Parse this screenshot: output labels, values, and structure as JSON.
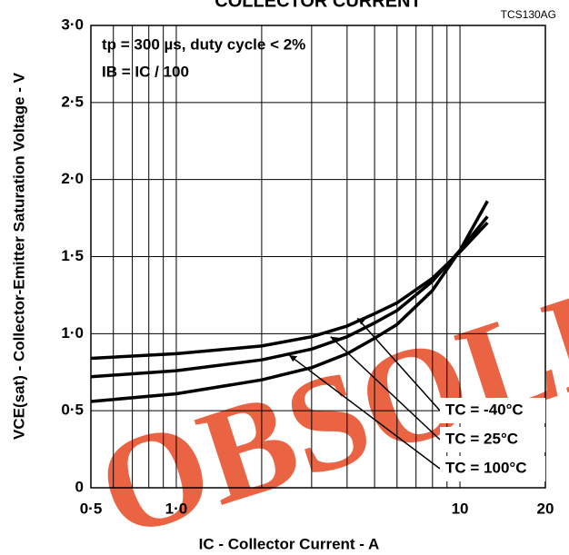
{
  "chart_data": {
    "type": "line",
    "title": "COLLECTOR CURRENT",
    "figure_id": "TCS130AG",
    "annotations": [
      "tp = 300 µs, duty cycle < 2%",
      "IB = IC / 100"
    ],
    "x_label": "IC - Collector Current - A",
    "y_label": "VCE(sat) - Collector-Emitter Saturation Voltage - V",
    "watermark": "OBSOLETE",
    "x_log": true,
    "grid": true,
    "xlim": [
      0.5,
      20
    ],
    "ylim": [
      0,
      3
    ],
    "xticks": [
      {
        "value": 0.5,
        "label": "0·5"
      },
      {
        "value": 1,
        "label": "1·0"
      },
      10,
      20
    ],
    "xminorticks": [
      0.6,
      0.7,
      0.8,
      0.9,
      2,
      3,
      4,
      5,
      6,
      7,
      8,
      9
    ],
    "yticks": [
      0,
      {
        "value": 0.5,
        "label": "0·5"
      },
      {
        "value": 1,
        "label": "1·0"
      },
      {
        "value": 1.5,
        "label": "1·5"
      },
      {
        "value": 2,
        "label": "2·0"
      },
      {
        "value": 2.5,
        "label": "2·5"
      },
      {
        "value": 3,
        "label": "3·0"
      }
    ],
    "x": [
      0.5,
      1,
      2,
      3,
      4,
      5,
      6,
      8,
      10,
      12.5
    ],
    "series": [
      {
        "name": "TC = -40°C",
        "color": "#000000",
        "values": [
          0.84,
          0.87,
          0.92,
          0.98,
          1.05,
          1.13,
          1.2,
          1.36,
          1.53,
          1.72
        ]
      },
      {
        "name": "TC = 25°C",
        "color": "#000000",
        "values": [
          0.72,
          0.76,
          0.83,
          0.9,
          0.98,
          1.07,
          1.15,
          1.34,
          1.54,
          1.76
        ]
      },
      {
        "name": "TC = 100°C",
        "color": "#000000",
        "values": [
          0.56,
          0.61,
          0.7,
          0.78,
          0.87,
          0.97,
          1.06,
          1.28,
          1.54,
          1.86
        ]
      }
    ]
  }
}
